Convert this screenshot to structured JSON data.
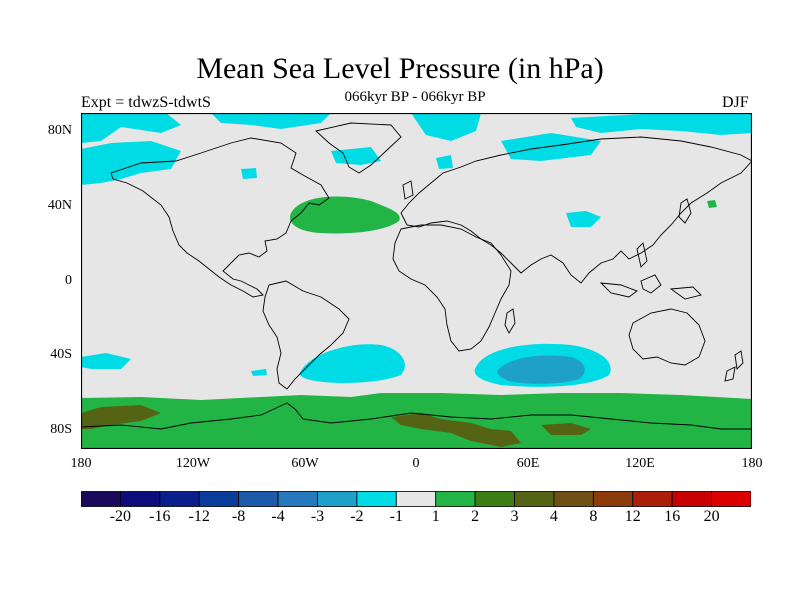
{
  "title": "Mean Sea Level Pressure (in hPa)",
  "subtitle": "066kyr BP - 066kyr BP",
  "experiment": "Expt = tdwzS-tdwtS",
  "season": "DJF",
  "lat_labels": [
    "80N",
    "40N",
    "0",
    "40S",
    "80S"
  ],
  "lon_labels": [
    "180",
    "120W",
    "60W",
    "0",
    "60E",
    "120E",
    "180"
  ],
  "colorbar": {
    "labels": [
      "-20",
      "-16",
      "-12",
      "-8",
      "-4",
      "-3",
      "-2",
      "-1",
      "1",
      "2",
      "3",
      "4",
      "8",
      "12",
      "16",
      "20"
    ],
    "colors": [
      "#1a0a5a",
      "#0d0d7a",
      "#0a1e8c",
      "#0a3c9b",
      "#1e5aaa",
      "#2878be",
      "#1ea0c8",
      "#00dce6",
      "#e6e6e6",
      "#23b446",
      "#3c7d14",
      "#556414",
      "#6e5014",
      "#8c3c0a",
      "#aa1e0a",
      "#c80000",
      "#dc0000"
    ]
  },
  "map_colors": {
    "neutral": "#e6e6e6",
    "cyan": "#00dce6",
    "blue": "#1ea0c8",
    "green": "#23b446",
    "dark_green": "#556414",
    "coast": "#000000"
  }
}
